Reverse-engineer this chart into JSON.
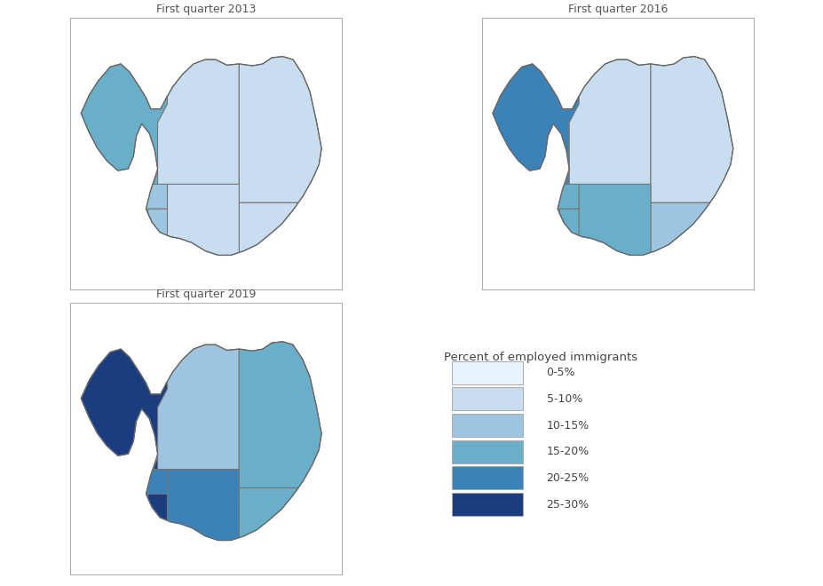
{
  "title_2013": "First quarter 2013",
  "title_2016": "First quarter 2016",
  "title_2019": "First quarter 2019",
  "legend_title": "Percent of employed immigrants",
  "legend_labels": [
    "0-5%",
    "5-10%",
    "10-15%",
    "15-20%",
    "20-25%",
    "25-30%"
  ],
  "legend_colors": [
    "#e8f4fb",
    "#c8ddf0",
    "#9dc5e0",
    "#6aafc9",
    "#3b82b8",
    "#1b3d80"
  ],
  "background": "#ffffff",
  "border_color": "#aaaaaa",
  "region_edge_color": "#777777",
  "regions_2013": {
    "Westfjords": "15-20%",
    "West": "5-10%",
    "Northwest": "5-10%",
    "Northeast": "5-10%",
    "East": "5-10%",
    "South": "5-10%",
    "Southwest": "10-15%",
    "Capital": "10-15%"
  },
  "regions_2016": {
    "Westfjords": "20-25%",
    "West": "5-10%",
    "Northwest": "5-10%",
    "Northeast": "5-10%",
    "East": "10-15%",
    "South": "15-20%",
    "Southwest": "15-20%",
    "Capital": "15-20%"
  },
  "regions_2019": {
    "Westfjords": "25-30%",
    "West": "5-10%",
    "Northwest": "10-15%",
    "Northeast": "15-20%",
    "East": "15-20%",
    "South": "20-25%",
    "Southwest": "20-25%",
    "Capital": "25-30%"
  }
}
